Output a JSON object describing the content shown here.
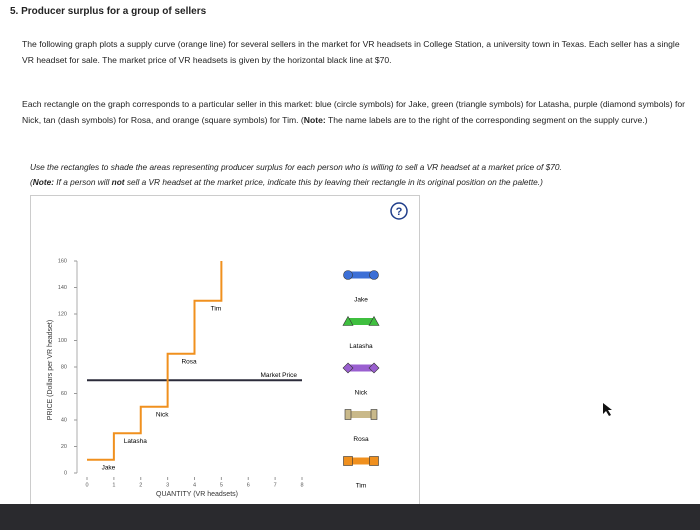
{
  "header": {
    "title": "5. Producer surplus for a group of sellers"
  },
  "paragraphs": [
    {
      "text": "The following graph plots a supply curve (orange line) for several sellers in the market for VR headsets in College Station, a university town in Texas. Each seller has a single VR headset for sale. The market price of VR headsets is given by the horizontal black line at $70."
    },
    {
      "text": "Each rectangle on the graph corresponds to a particular seller in this market: blue (circle symbols) for Jake, green (triangle symbols) for Latasha, purple (diamond symbols) for Nick, tan (dash symbols) for Rosa, and orange (square symbols) for Tim. (",
      "bold": "Note:",
      "after": " The name labels are to the right of the corresponding segment on the supply curve.)"
    }
  ],
  "instructions": {
    "text": "Use the rectangles to shade the areas representing producer surplus for each person who is willing to sell a VR headset at a market price of $70.",
    "note_open": "(",
    "note_label": "Note:",
    "note_before": " If a person will ",
    "note_bold": "not",
    "note_after": " sell a VR headset at the market price, indicate this by leaving their rectangle in its original position on the palette.)"
  },
  "help": "?",
  "chart_data": {
    "type": "line",
    "xlabel": "QUANTITY (VR headsets)",
    "ylabel": "PRICE (Dollars per VR headset)",
    "xlim": [
      0,
      8
    ],
    "xticks": [
      0,
      1,
      2,
      3,
      4,
      5,
      6,
      7,
      8
    ],
    "ylim": [
      0,
      160
    ],
    "yticks": [
      0,
      20,
      40,
      60,
      80,
      100,
      120,
      140,
      160
    ],
    "series": [
      {
        "color": "#f0901e",
        "x": [
          0,
          1,
          1,
          2,
          2,
          3,
          3,
          4,
          4,
          5,
          5
        ],
        "values": [
          10,
          10,
          30,
          30,
          50,
          50,
          90,
          90,
          130,
          130,
          160
        ]
      }
    ],
    "segment_labels": [
      "Jake",
      "Latasha",
      "Nick",
      "Rosa",
      "Tim"
    ],
    "market_price": {
      "label": "Market Price",
      "value": 70,
      "color": "#2b2b3a"
    }
  },
  "palette": [
    {
      "label": "Jake",
      "color": "#3c6fd6",
      "symbol": "circle"
    },
    {
      "label": "Latasha",
      "color": "#3fbf3f",
      "symbol": "triangle"
    },
    {
      "label": "Nick",
      "color": "#9a5fd0",
      "symbol": "diamond"
    },
    {
      "label": "Rosa",
      "color": "#c9b98a",
      "symbol": "dash"
    },
    {
      "label": "Tim",
      "color": "#f0901e",
      "symbol": "square"
    }
  ]
}
